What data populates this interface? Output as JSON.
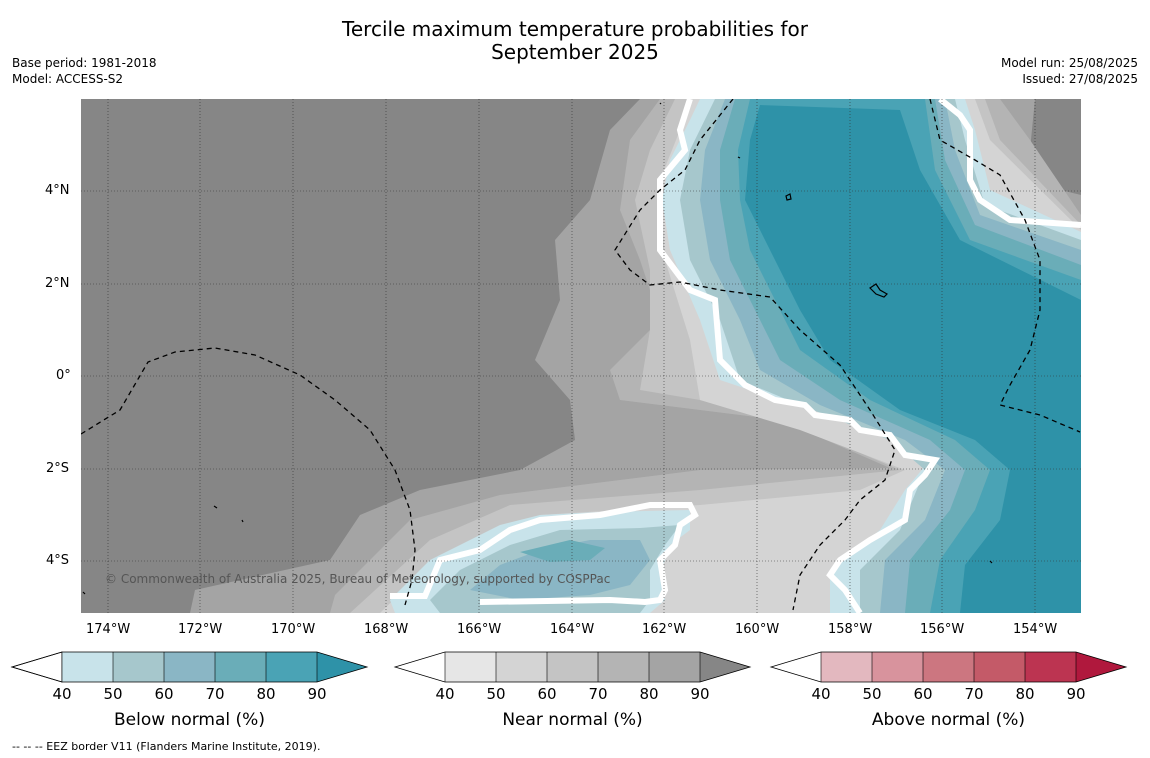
{
  "title_line1": "Tercile maximum temperature probabilities for",
  "title_line2": "September 2025",
  "meta": {
    "base_period": "Base period: 1981-2018",
    "model": "Model: ACCESS-S2",
    "model_run": "Model run: 25/08/2025",
    "issued": "Issued: 27/08/2025"
  },
  "copyright": "© Commonwealth of Australia 2025, Bureau of Meteorology, supported by COSPPac",
  "longitude_labels": [
    "174°W",
    "172°W",
    "170°W",
    "168°W",
    "166°W",
    "164°W",
    "162°W",
    "160°W",
    "158°W",
    "156°W",
    "154°W"
  ],
  "latitude_labels": [
    "4°N",
    "2°N",
    "0°",
    "2°S",
    "4°S"
  ],
  "colorbars": [
    {
      "label": "Below normal (%)",
      "ticks": [
        "40",
        "50",
        "60",
        "70",
        "80",
        "90"
      ],
      "colors": [
        "#ffffff",
        "#c8e3ea",
        "#a6c7cc",
        "#8ab6c5",
        "#6aadb8",
        "#4aa3b5",
        "#2e92a8"
      ]
    },
    {
      "label": "Near normal (%)",
      "ticks": [
        "40",
        "50",
        "60",
        "70",
        "80",
        "90"
      ],
      "colors": [
        "#ffffff",
        "#e6e6e6",
        "#d4d4d4",
        "#c4c4c4",
        "#b4b4b4",
        "#a4a4a4",
        "#868686"
      ]
    },
    {
      "label": "Above normal (%)",
      "ticks": [
        "40",
        "50",
        "60",
        "70",
        "80",
        "90"
      ],
      "colors": [
        "#ffffff",
        "#e3b8bf",
        "#d8939d",
        "#cc7680",
        "#c45a68",
        "#bc3451",
        "#b0183d"
      ]
    }
  ],
  "footnote": "--  --  -- EEZ border V11 (Flanders Marine Institute, 2019)."
}
